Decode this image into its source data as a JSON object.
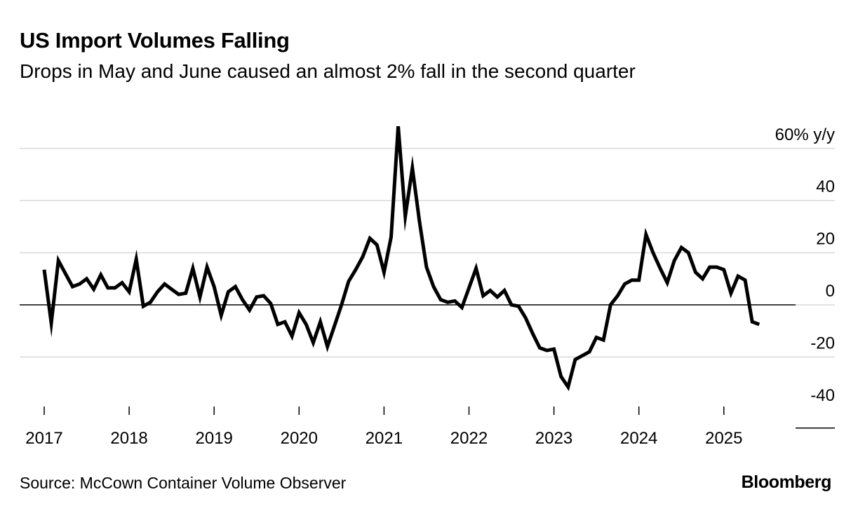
{
  "header": {
    "title": "US Import Volumes Falling",
    "subtitle": "Drops in May and June caused an almost 2% fall in the second quarter"
  },
  "footer": {
    "source": "Source: McCown Container Volume Observer",
    "brand": "Bloomberg"
  },
  "colors": {
    "line": "#000000",
    "grid": "#d9d9d9",
    "zero_line": "#000000",
    "text": "#000000"
  },
  "chart_data": {
    "type": "line",
    "title": "US Import Volumes Falling",
    "subtitle": "Drops in May and June caused an almost 2% fall in the second quarter",
    "ylabel": "",
    "y_unit_label": "60% y/y",
    "ylim": [
      -40,
      60
    ],
    "y_ticks": [
      {
        "value": 60,
        "label": "60% y/y"
      },
      {
        "value": 40,
        "label": "40"
      },
      {
        "value": 20,
        "label": "20"
      },
      {
        "value": 0,
        "label": "0"
      },
      {
        "value": -20,
        "label": "-20"
      },
      {
        "value": -40,
        "label": "-40"
      }
    ],
    "x_ticks": [
      "2017",
      "2018",
      "2019",
      "2020",
      "2021",
      "2022",
      "2023",
      "2024",
      "2025"
    ],
    "xlim": [
      "2017-01",
      "2025-06"
    ],
    "grid": true,
    "legend": "none",
    "series": [
      {
        "x": [
          "2017-01",
          "2017-02",
          "2017-03",
          "2017-04",
          "2017-05",
          "2017-06",
          "2017-07",
          "2017-08",
          "2017-09",
          "2017-10",
          "2017-11",
          "2017-12",
          "2018-01",
          "2018-02",
          "2018-03",
          "2018-04",
          "2018-05",
          "2018-06",
          "2018-07",
          "2018-08",
          "2018-09",
          "2018-10",
          "2018-11",
          "2018-12",
          "2019-01",
          "2019-02",
          "2019-03",
          "2019-04",
          "2019-05",
          "2019-06",
          "2019-07",
          "2019-08",
          "2019-09",
          "2019-10",
          "2019-11",
          "2019-12",
          "2020-01",
          "2020-02",
          "2020-03",
          "2020-04",
          "2020-05",
          "2020-06",
          "2020-07",
          "2020-08",
          "2020-09",
          "2020-10",
          "2020-11",
          "2020-12",
          "2021-01",
          "2021-02",
          "2021-03",
          "2021-04",
          "2021-05",
          "2021-06",
          "2021-07",
          "2021-08",
          "2021-09",
          "2021-10",
          "2021-11",
          "2021-12",
          "2022-01",
          "2022-02",
          "2022-03",
          "2022-04",
          "2022-05",
          "2022-06",
          "2022-07",
          "2022-08",
          "2022-09",
          "2022-10",
          "2022-11",
          "2022-12",
          "2023-01",
          "2023-02",
          "2023-03",
          "2023-04",
          "2023-05",
          "2023-06",
          "2023-07",
          "2023-08",
          "2023-09",
          "2023-10",
          "2023-11",
          "2023-12",
          "2024-01",
          "2024-02",
          "2024-03",
          "2024-04",
          "2024-05",
          "2024-06",
          "2024-07",
          "2024-08",
          "2024-09",
          "2024-10",
          "2024-11",
          "2024-12",
          "2025-01",
          "2025-02",
          "2025-03",
          "2025-04",
          "2025-05",
          "2025-06"
        ],
        "values": [
          13.5,
          -7,
          17,
          12,
          7,
          8,
          10,
          6,
          11.5,
          6.5,
          6.5,
          8.5,
          5,
          17.5,
          -0.5,
          1,
          5,
          8,
          6,
          4,
          4.5,
          14,
          3,
          14.5,
          7,
          -4,
          5,
          7,
          2,
          -2,
          3,
          3.5,
          0.5,
          -7.5,
          -6.5,
          -12,
          -3,
          -7.5,
          -14.5,
          -6.5,
          -16,
          -8,
          0,
          9,
          13.5,
          18.5,
          25.5,
          23,
          12.5,
          26,
          68.5,
          34,
          52.5,
          32,
          14.5,
          7,
          2,
          1,
          1.5,
          -1,
          6.5,
          14,
          3.5,
          5.5,
          3,
          5.5,
          0,
          -0.5,
          -5,
          -11,
          -16.5,
          -17.5,
          -17,
          -27.5,
          -31.5,
          -21,
          -19.5,
          -18,
          -12.5,
          -13.5,
          0,
          3.5,
          8,
          9.5,
          9.5,
          27,
          20,
          14,
          8.5,
          17,
          22,
          20,
          12.5,
          10,
          14.5,
          14.5,
          13.5,
          4.5,
          11,
          9.5,
          -6.5,
          -7.5
        ]
      }
    ]
  }
}
